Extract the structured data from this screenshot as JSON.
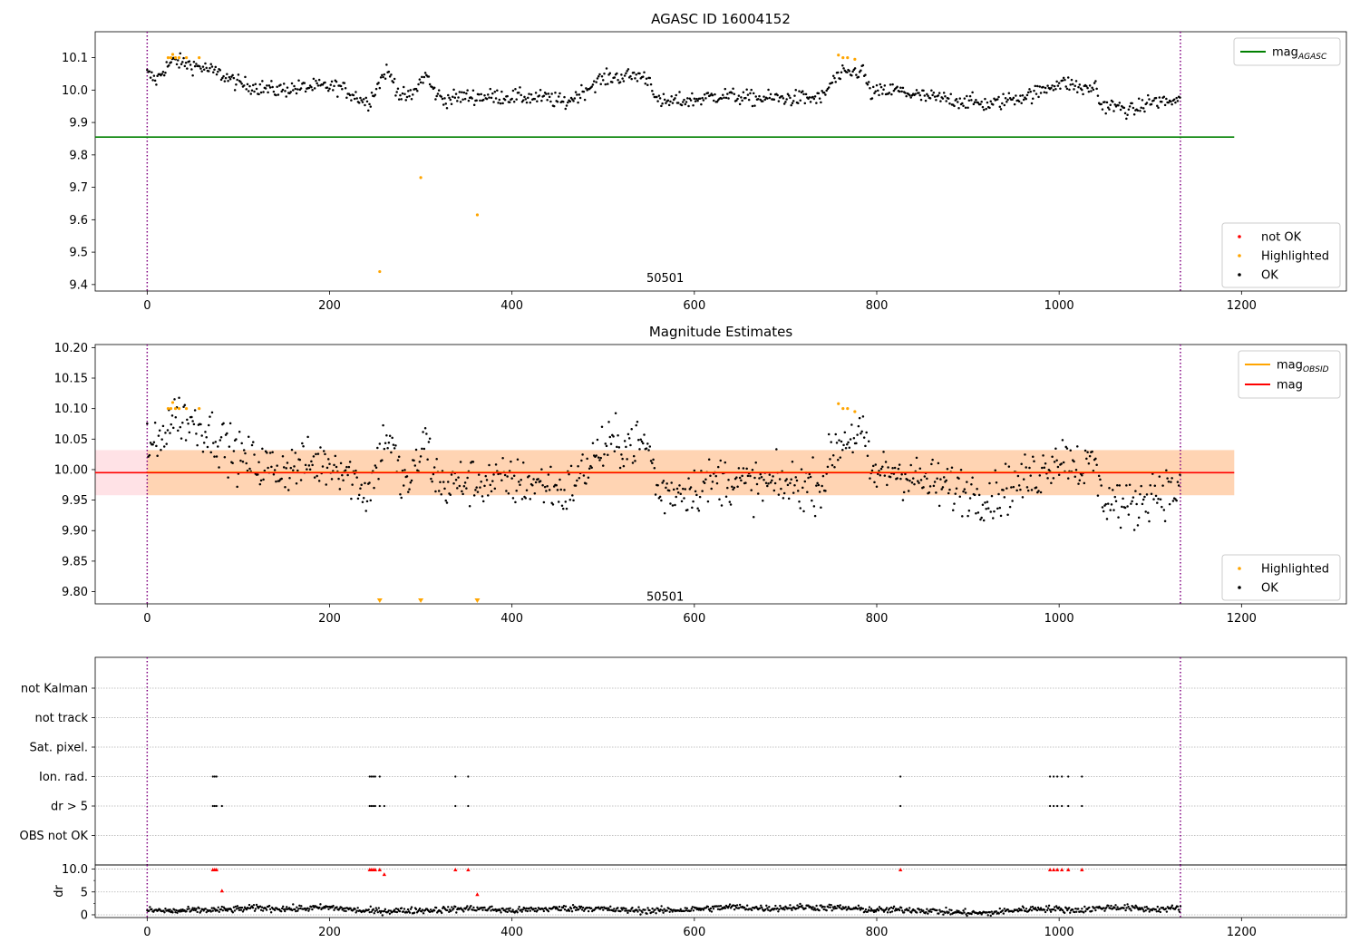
{
  "chart_data": [
    {
      "type": "scatter",
      "title": "AGASC ID 16004152",
      "xlim": [
        -57,
        1315
      ],
      "ylim": [
        9.38,
        10.18
      ],
      "xticks": [
        0,
        200,
        400,
        600,
        800,
        1000,
        1200
      ],
      "yticks": [
        9.4,
        9.5,
        9.6,
        9.7,
        9.8,
        9.9,
        10.0,
        10.1
      ],
      "obsid_marker_x": [
        0,
        1133
      ],
      "obsid_label": {
        "x": 568,
        "y": 9.42,
        "text": "50501"
      },
      "mag_agasc": 9.855,
      "legend_lines": [
        {
          "label": "mag",
          "sub": "AGASC",
          "color": "#008000"
        }
      ],
      "legend_points": [
        {
          "label": "not OK",
          "color": "#ff0000"
        },
        {
          "label": "Highlighted",
          "color": "#ffa500"
        },
        {
          "label": "OK",
          "color": "#000000"
        }
      ],
      "highlighted_points": [
        [
          23,
          10.1
        ],
        [
          26,
          10.1
        ],
        [
          28,
          10.11
        ],
        [
          31,
          10.1
        ],
        [
          35,
          10.1
        ],
        [
          43,
          10.1
        ],
        [
          57,
          10.1
        ],
        [
          255,
          9.44
        ],
        [
          300,
          9.73
        ],
        [
          362,
          9.615
        ],
        [
          758,
          10.108
        ],
        [
          763,
          10.1
        ],
        [
          768,
          10.1
        ],
        [
          776,
          10.095
        ]
      ],
      "ok_trend": [
        [
          0,
          10.05
        ],
        [
          10,
          10.03
        ],
        [
          20,
          10.07
        ],
        [
          30,
          10.09
        ],
        [
          45,
          10.08
        ],
        [
          60,
          10.07
        ],
        [
          80,
          10.05
        ],
        [
          100,
          10.02
        ],
        [
          140,
          10.0
        ],
        [
          180,
          10.01
        ],
        [
          210,
          10.01
        ],
        [
          230,
          9.98
        ],
        [
          242,
          9.96
        ],
        [
          252,
          10.01
        ],
        [
          262,
          10.06
        ],
        [
          270,
          10.03
        ],
        [
          278,
          9.98
        ],
        [
          290,
          9.98
        ],
        [
          298,
          10.02
        ],
        [
          306,
          10.05
        ],
        [
          313,
          10.0
        ],
        [
          325,
          9.97
        ],
        [
          345,
          9.98
        ],
        [
          365,
          9.98
        ],
        [
          400,
          9.98
        ],
        [
          440,
          9.975
        ],
        [
          458,
          9.96
        ],
        [
          475,
          9.99
        ],
        [
          495,
          10.03
        ],
        [
          510,
          10.04
        ],
        [
          540,
          10.045
        ],
        [
          552,
          10.03
        ],
        [
          560,
          9.96
        ],
        [
          575,
          9.965
        ],
        [
          600,
          9.97
        ],
        [
          630,
          9.985
        ],
        [
          660,
          9.975
        ],
        [
          700,
          9.975
        ],
        [
          740,
          9.975
        ],
        [
          752,
          10.03
        ],
        [
          765,
          10.05
        ],
        [
          785,
          10.06
        ],
        [
          793,
          9.99
        ],
        [
          820,
          10.0
        ],
        [
          850,
          9.98
        ],
        [
          900,
          9.965
        ],
        [
          925,
          9.955
        ],
        [
          950,
          9.975
        ],
        [
          975,
          9.99
        ],
        [
          995,
          10.02
        ],
        [
          1010,
          10.02
        ],
        [
          1030,
          10.0
        ],
        [
          1040,
          10.015
        ],
        [
          1045,
          9.955
        ],
        [
          1060,
          9.95
        ],
        [
          1080,
          9.935
        ],
        [
          1100,
          9.965
        ],
        [
          1120,
          9.965
        ],
        [
          1133,
          9.965
        ]
      ],
      "ok_spread": 0.012
    },
    {
      "type": "scatter",
      "title": "Magnitude Estimates",
      "xlim": [
        -57,
        1315
      ],
      "ylim": [
        9.78,
        10.205
      ],
      "xticks": [
        0,
        200,
        400,
        600,
        800,
        1000,
        1200
      ],
      "yticks": [
        9.8,
        9.85,
        9.9,
        9.95,
        10.0,
        10.05,
        10.1,
        10.15,
        10.2
      ],
      "ytick_labels": [
        "9.80",
        "9.85",
        "9.90",
        "9.95",
        "10.00",
        "10.05",
        "10.10",
        "10.15",
        "10.20"
      ],
      "obsid_marker_x": [
        0,
        1133
      ],
      "obsid_label": {
        "x": 568,
        "y": 9.792,
        "text": "50501"
      },
      "mag": 9.995,
      "mag_band": [
        9.958,
        10.032
      ],
      "legend_lines": [
        {
          "label": "mag",
          "sub": "OBSID",
          "color": "#ffa500"
        },
        {
          "label": "mag",
          "sub": "",
          "color": "#ff0000"
        }
      ],
      "legend_points": [
        {
          "label": "Highlighted",
          "color": "#ffa500"
        },
        {
          "label": "OK",
          "color": "#000000"
        }
      ],
      "highlighted_points": [
        [
          23,
          10.1
        ],
        [
          26,
          10.1
        ],
        [
          28,
          10.11
        ],
        [
          31,
          10.1
        ],
        [
          35,
          10.1
        ],
        [
          43,
          10.1
        ],
        [
          57,
          10.1
        ],
        [
          758,
          10.108
        ],
        [
          763,
          10.1
        ],
        [
          768,
          10.1
        ],
        [
          776,
          10.095
        ]
      ],
      "highlighted_below_range_x": [
        255,
        300,
        362
      ],
      "ok_trend": [
        [
          0,
          10.05
        ],
        [
          10,
          10.03
        ],
        [
          20,
          10.07
        ],
        [
          30,
          10.09
        ],
        [
          45,
          10.08
        ],
        [
          60,
          10.07
        ],
        [
          80,
          10.05
        ],
        [
          100,
          10.02
        ],
        [
          140,
          10.0
        ],
        [
          180,
          10.01
        ],
        [
          210,
          10.01
        ],
        [
          230,
          9.98
        ],
        [
          242,
          9.96
        ],
        [
          252,
          10.01
        ],
        [
          262,
          10.06
        ],
        [
          270,
          10.03
        ],
        [
          278,
          9.98
        ],
        [
          290,
          9.98
        ],
        [
          298,
          10.02
        ],
        [
          306,
          10.05
        ],
        [
          313,
          10.0
        ],
        [
          325,
          9.97
        ],
        [
          345,
          9.98
        ],
        [
          365,
          9.98
        ],
        [
          400,
          9.98
        ],
        [
          440,
          9.975
        ],
        [
          458,
          9.96
        ],
        [
          475,
          9.99
        ],
        [
          495,
          10.03
        ],
        [
          510,
          10.04
        ],
        [
          540,
          10.045
        ],
        [
          552,
          10.03
        ],
        [
          560,
          9.96
        ],
        [
          575,
          9.965
        ],
        [
          600,
          9.97
        ],
        [
          630,
          9.985
        ],
        [
          660,
          9.975
        ],
        [
          700,
          9.975
        ],
        [
          740,
          9.975
        ],
        [
          752,
          10.03
        ],
        [
          765,
          10.05
        ],
        [
          785,
          10.06
        ],
        [
          793,
          9.99
        ],
        [
          820,
          10.0
        ],
        [
          850,
          9.98
        ],
        [
          900,
          9.965
        ],
        [
          925,
          9.955
        ],
        [
          950,
          9.975
        ],
        [
          975,
          9.99
        ],
        [
          995,
          10.02
        ],
        [
          1010,
          10.02
        ],
        [
          1030,
          10.0
        ],
        [
          1040,
          10.015
        ],
        [
          1045,
          9.955
        ],
        [
          1060,
          9.95
        ],
        [
          1080,
          9.935
        ],
        [
          1100,
          9.965
        ],
        [
          1120,
          9.965
        ],
        [
          1133,
          9.965
        ]
      ],
      "ok_spread": 0.02
    },
    {
      "type": "scatter",
      "title": "",
      "xlim": [
        -57,
        1315
      ],
      "categories": [
        "OBS not OK",
        "dr > 5",
        "Ion. rad.",
        "Sat. pixel.",
        "not track",
        "not Kalman"
      ],
      "obsid_marker_x": [
        0,
        1133
      ],
      "flags": {
        "Ion. rad.": [
          72,
          74,
          76,
          244,
          246,
          248,
          250,
          255,
          338,
          352,
          826,
          990,
          994,
          998,
          1003,
          1010,
          1025
        ],
        "dr > 5": [
          72,
          74,
          76,
          82,
          244,
          246,
          248,
          250,
          255,
          260,
          338,
          352,
          826,
          990,
          994,
          998,
          1003,
          1010,
          1025
        ]
      }
    },
    {
      "type": "scatter",
      "title": "",
      "ylabel": "dr",
      "xlim": [
        -57,
        1315
      ],
      "ylim": [
        -0.6,
        10.9
      ],
      "xticks": [
        0,
        200,
        400,
        600,
        800,
        1000,
        1200
      ],
      "yticks": [
        0,
        5,
        10
      ],
      "obsid_marker_x": [
        0,
        1133
      ],
      "not_ok_points": [
        [
          72,
          9.9
        ],
        [
          74,
          9.9
        ],
        [
          76,
          9.9
        ],
        [
          82,
          5.3
        ],
        [
          244,
          9.9
        ],
        [
          246,
          9.9
        ],
        [
          248,
          9.9
        ],
        [
          250,
          9.9
        ],
        [
          255,
          9.9
        ],
        [
          260,
          8.9
        ],
        [
          338,
          9.9
        ],
        [
          352,
          9.9
        ],
        [
          362,
          4.5
        ],
        [
          826,
          9.9
        ],
        [
          990,
          9.9
        ],
        [
          994,
          9.9
        ],
        [
          998,
          9.9
        ],
        [
          1003,
          9.9
        ],
        [
          1010,
          9.9
        ],
        [
          1025,
          9.9
        ]
      ],
      "ok_trend": [
        [
          0,
          1.0
        ],
        [
          30,
          0.8
        ],
        [
          60,
          1.0
        ],
        [
          90,
          1.1
        ],
        [
          120,
          1.5
        ],
        [
          160,
          1.3
        ],
        [
          200,
          1.6
        ],
        [
          240,
          0.8
        ],
        [
          280,
          0.9
        ],
        [
          320,
          1.1
        ],
        [
          360,
          1.4
        ],
        [
          400,
          0.9
        ],
        [
          440,
          1.3
        ],
        [
          480,
          1.5
        ],
        [
          520,
          1.0
        ],
        [
          560,
          0.9
        ],
        [
          600,
          1.2
        ],
        [
          640,
          1.7
        ],
        [
          680,
          1.4
        ],
        [
          720,
          1.7
        ],
        [
          760,
          1.5
        ],
        [
          800,
          1.0
        ],
        [
          840,
          1.1
        ],
        [
          880,
          0.6
        ],
        [
          920,
          0.3
        ],
        [
          950,
          1.0
        ],
        [
          980,
          1.4
        ],
        [
          1020,
          1.0
        ],
        [
          1060,
          1.7
        ],
        [
          1100,
          1.2
        ],
        [
          1133,
          1.4
        ]
      ],
      "ok_spread": 0.35
    }
  ]
}
